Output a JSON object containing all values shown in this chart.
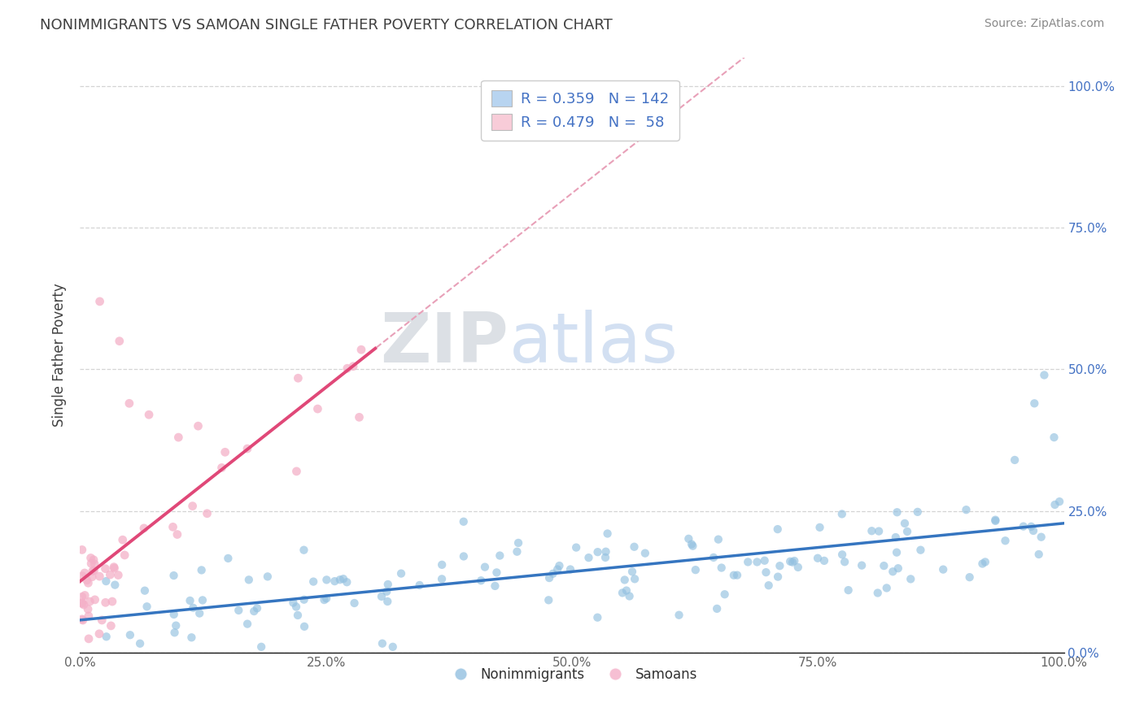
{
  "title": "NONIMMIGRANTS VS SAMOAN SINGLE FATHER POVERTY CORRELATION CHART",
  "source": "Source: ZipAtlas.com",
  "ylabel": "Single Father Poverty",
  "blue_R": 0.359,
  "blue_N": 142,
  "pink_R": 0.479,
  "pink_N": 58,
  "blue_color": "#92c0e0",
  "pink_color": "#f4b0c8",
  "blue_line_color": "#3575c0",
  "pink_line_color": "#e04878",
  "pink_dash_color": "#e8a0b8",
  "legend_blue_fill": "#b8d4f0",
  "legend_pink_fill": "#f8ccd8",
  "watermark_zip": "ZIP",
  "watermark_atlas": "atlas",
  "watermark_zip_color": "#c0c8d0",
  "watermark_atlas_color": "#b0c8e8",
  "background_color": "#ffffff",
  "grid_color": "#d0d0d0",
  "title_color": "#404040",
  "blue_scatter_seed": 99,
  "pink_scatter_seed": 77,
  "xlim": [
    0.0,
    1.0
  ],
  "ylim": [
    0.0,
    1.05
  ],
  "yticks": [
    0.0,
    0.25,
    0.5,
    0.75,
    1.0
  ],
  "ytick_labels": [
    "0.0%",
    "25.0%",
    "50.0%",
    "75.0%",
    "100.0%"
  ],
  "xticks": [
    0.0,
    0.25,
    0.5,
    0.75,
    1.0
  ],
  "xtick_labels": [
    "0.0%",
    "25.0%",
    "50.0%",
    "75.0%",
    "100.0%"
  ]
}
